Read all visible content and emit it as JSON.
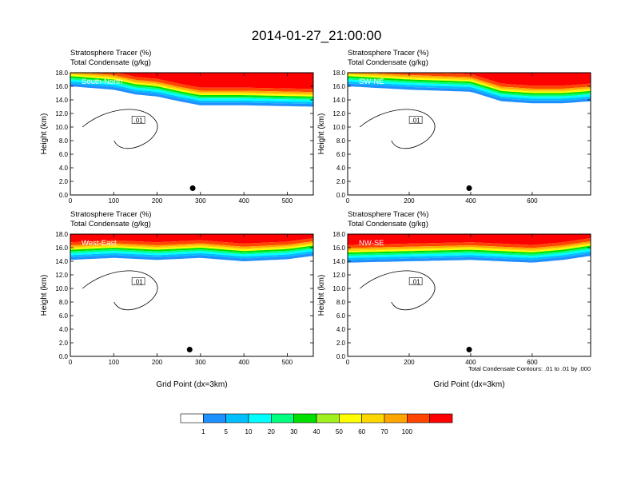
{
  "figure": {
    "title": "2014-01-27_21:00:00",
    "panel_label_1": "Stratosphere Tracer   (%)",
    "panel_label_2": "Total Condensate   (g/kg)",
    "ylabel": "Height (km)",
    "xlabel": "Grid Point (dx=3km)",
    "contour_note": "Total Condensate Contours: .01 to .01 by .000",
    "contour_label": "0.01"
  },
  "chart_data": [
    {
      "type": "heatmap",
      "title": "South-North",
      "xlim": [
        0,
        560
      ],
      "ylim": [
        0,
        18
      ],
      "xticks": [
        0,
        100,
        200,
        300,
        400,
        500
      ],
      "yticks": [
        0,
        2,
        4,
        6,
        8,
        10,
        12,
        14,
        16,
        18
      ],
      "tracer_base_km": [
        [
          0,
          16.0
        ],
        [
          100,
          15.5
        ],
        [
          150,
          14.8
        ],
        [
          200,
          14.5
        ],
        [
          250,
          13.8
        ],
        [
          300,
          13.2
        ],
        [
          400,
          13.2
        ],
        [
          560,
          13.0
        ]
      ],
      "marker": {
        "x": 282,
        "y": 1.0
      }
    },
    {
      "type": "heatmap",
      "title": "SW-NE",
      "xlim": [
        0,
        790
      ],
      "ylim": [
        0,
        18
      ],
      "xticks": [
        0,
        200,
        400,
        600
      ],
      "yticks": [
        0,
        2,
        4,
        6,
        8,
        10,
        12,
        14,
        16,
        18
      ],
      "tracer_base_km": [
        [
          0,
          16.0
        ],
        [
          200,
          15.5
        ],
        [
          400,
          15.2
        ],
        [
          500,
          13.8
        ],
        [
          600,
          13.5
        ],
        [
          700,
          13.5
        ],
        [
          790,
          13.8
        ]
      ],
      "marker": {
        "x": 395,
        "y": 1.0
      }
    },
    {
      "type": "heatmap",
      "title": "West-East",
      "xlim": [
        0,
        560
      ],
      "ylim": [
        0,
        18
      ],
      "xticks": [
        0,
        100,
        200,
        300,
        400,
        500
      ],
      "yticks": [
        0,
        2,
        4,
        6,
        8,
        10,
        12,
        14,
        16,
        18
      ],
      "tracer_base_km": [
        [
          0,
          14.2
        ],
        [
          100,
          14.5
        ],
        [
          200,
          14.2
        ],
        [
          300,
          14.5
        ],
        [
          400,
          14.0
        ],
        [
          500,
          14.3
        ],
        [
          560,
          14.8
        ]
      ],
      "marker": {
        "x": 275,
        "y": 1.0
      }
    },
    {
      "type": "heatmap",
      "title": "NW-SE",
      "xlim": [
        0,
        790
      ],
      "ylim": [
        0,
        18
      ],
      "xticks": [
        0,
        200,
        400,
        600
      ],
      "yticks": [
        0,
        2,
        4,
        6,
        8,
        10,
        12,
        14,
        16,
        18
      ],
      "tracer_base_km": [
        [
          0,
          13.8
        ],
        [
          200,
          14.0
        ],
        [
          400,
          14.2
        ],
        [
          600,
          13.8
        ],
        [
          700,
          14.2
        ],
        [
          790,
          14.8
        ]
      ],
      "marker": {
        "x": 395,
        "y": 1.0
      }
    }
  ],
  "colorbar": {
    "labels": [
      "1",
      "5",
      "10",
      "20",
      "30",
      "40",
      "50",
      "60",
      "70",
      "100"
    ],
    "colors": [
      "#ffffff",
      "#1e90ff",
      "#00bfff",
      "#00ffff",
      "#00ff7f",
      "#00e000",
      "#a0f020",
      "#ffff00",
      "#ffd700",
      "#ffa500",
      "#ff4500",
      "#ff0000"
    ]
  }
}
